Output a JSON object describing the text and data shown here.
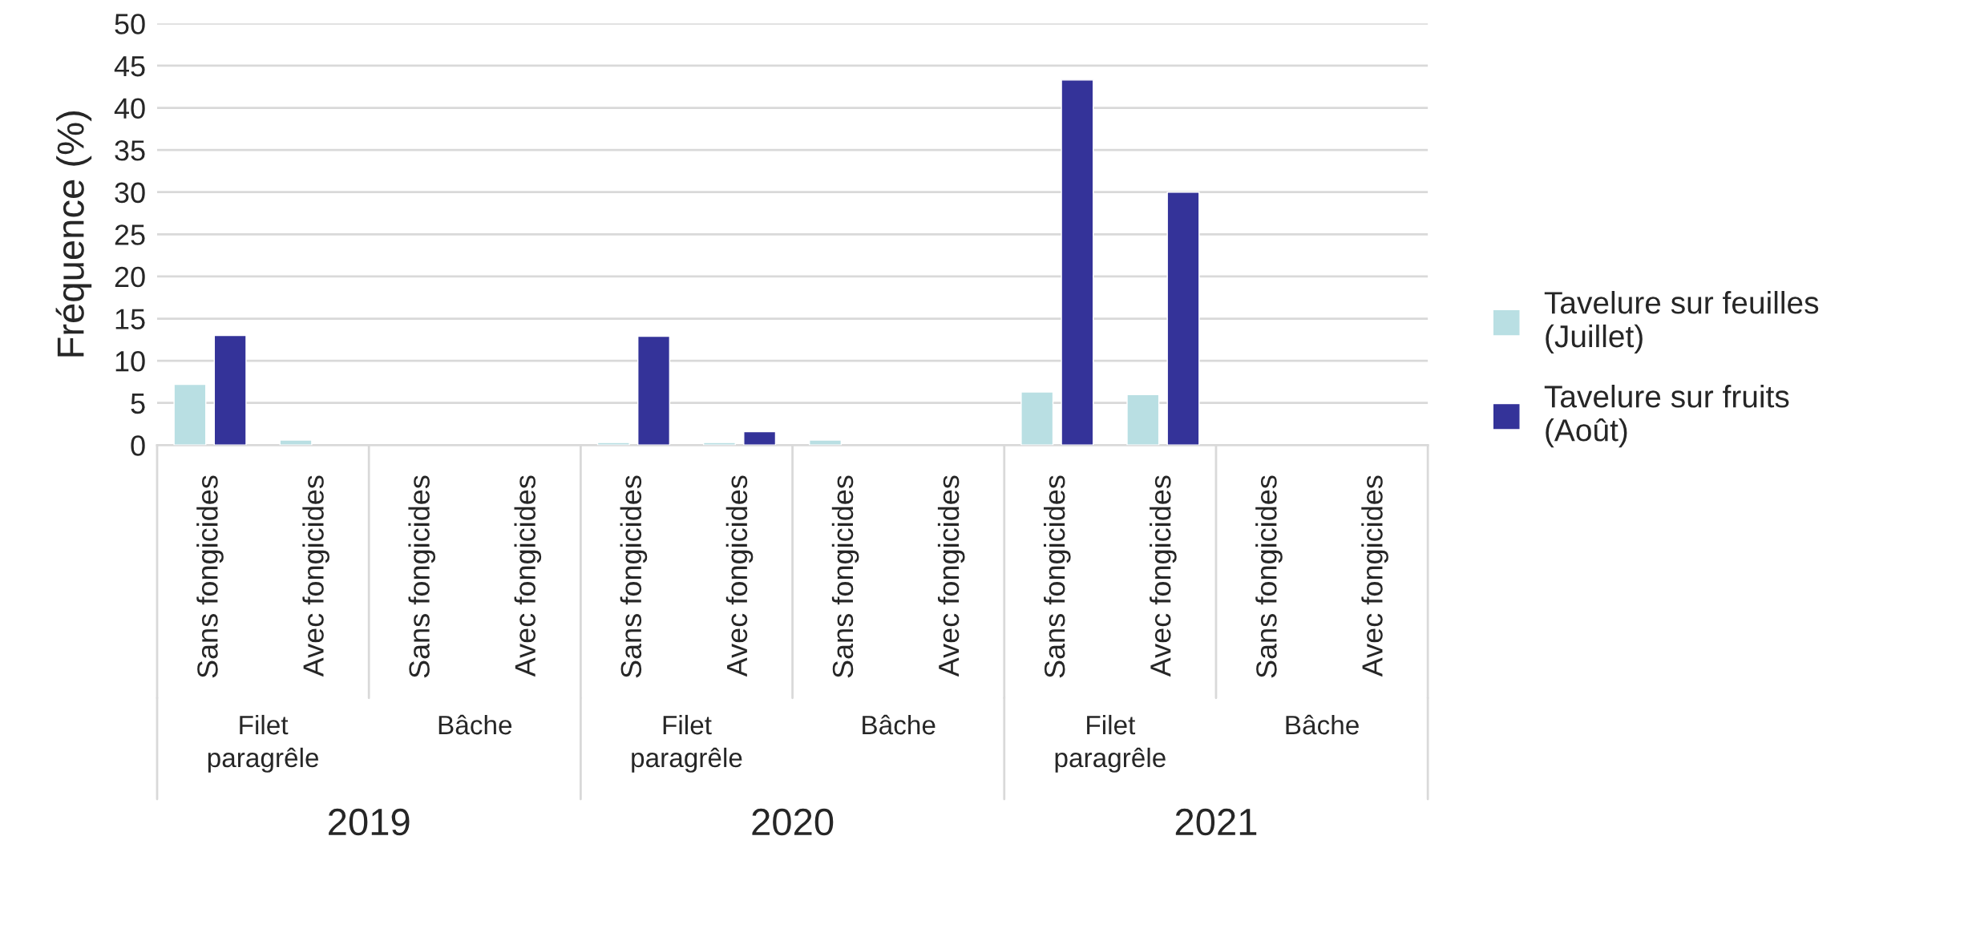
{
  "chart_data": {
    "type": "bar",
    "ylabel": "Fréquence (%)",
    "categories": [
      "Sans fongicides",
      "Avec fongicides",
      "Sans fongicides",
      "Avec fongicides",
      "Sans fongicides",
      "Avec fongicides",
      "Sans fongicides",
      "Avec fongicides",
      "Sans fongicides",
      "Avec fongicides",
      "Sans fongicides",
      "Avec fongicides"
    ],
    "series": [
      {
        "name": "Tavelure sur feuilles\n(Juillet)",
        "color": "#b9dfe3",
        "values": [
          7.2,
          0.6,
          null,
          null,
          0.3,
          0.3,
          0.6,
          null,
          6.3,
          6.0,
          null,
          null
        ]
      },
      {
        "name": "Tavelure sur fruits\n(Août)",
        "color": "#343399",
        "values": [
          13.0,
          null,
          null,
          null,
          12.9,
          1.6,
          null,
          null,
          43.3,
          30.0,
          null,
          null
        ]
      }
    ],
    "annotations": [
      "Filet\nparagrêle",
      "Bâche",
      "Filet\nparagrêle",
      "Bâche",
      "Filet\nparagrêle",
      "Bâche",
      "2019",
      "2020",
      "2021"
    ],
    "ylim": [
      0,
      50
    ],
    "yticks": [
      0,
      5,
      10,
      15,
      20,
      25,
      30,
      35,
      40,
      45,
      50
    ],
    "grid": "y",
    "legend": "right"
  }
}
